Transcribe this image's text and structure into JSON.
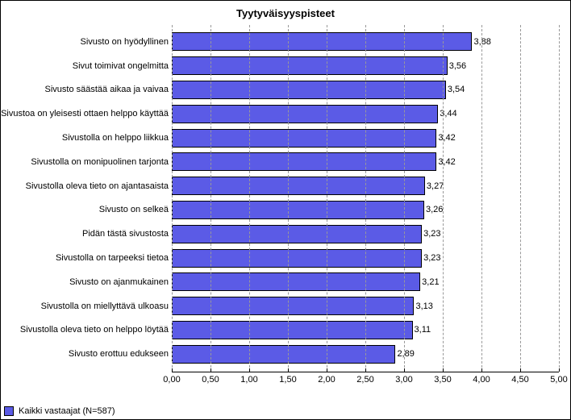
{
  "chart": {
    "type": "bar-horizontal",
    "title": "Tyytyväisyyspisteet",
    "title_fontsize": 13,
    "label_fontsize": 11,
    "background_color": "#ffffff",
    "border_color": "#000000",
    "grid_color": "#999999",
    "bar_color": "#5b5be6",
    "bar_border_color": "#000000",
    "xlim": [
      0.0,
      5.0
    ],
    "xtick_step": 0.5,
    "xticks": [
      "0,00",
      "0,50",
      "1,00",
      "1,50",
      "2,00",
      "2,50",
      "3,00",
      "3,50",
      "4,00",
      "4,50",
      "5,00"
    ],
    "bars": [
      {
        "label": "Sivusto on hyödyllinen",
        "value": 3.88,
        "value_text": "3,88"
      },
      {
        "label": "Sivut toimivat ongelmitta",
        "value": 3.56,
        "value_text": "3,56"
      },
      {
        "label": "Sivusto säästää aikaa ja vaivaa",
        "value": 3.54,
        "value_text": "3,54"
      },
      {
        "label": "Sivustoa on yleisesti ottaen helppo käyttää",
        "value": 3.44,
        "value_text": "3,44"
      },
      {
        "label": "Sivustolla on helppo liikkua",
        "value": 3.42,
        "value_text": "3,42"
      },
      {
        "label": "Sivustolla on monipuolinen tarjonta",
        "value": 3.42,
        "value_text": "3,42"
      },
      {
        "label": "Sivustolla oleva tieto on ajantasaista",
        "value": 3.27,
        "value_text": "3,27"
      },
      {
        "label": "Sivusto on selkeä",
        "value": 3.26,
        "value_text": "3,26"
      },
      {
        "label": "Pidän tästä sivustosta",
        "value": 3.23,
        "value_text": "3,23"
      },
      {
        "label": "Sivustolla on tarpeeksi tietoa",
        "value": 3.23,
        "value_text": "3,23"
      },
      {
        "label": "Sivusto on ajanmukainen",
        "value": 3.21,
        "value_text": "3,21"
      },
      {
        "label": "Sivustolla on miellyttävä ulkoasu",
        "value": 3.13,
        "value_text": "3,13"
      },
      {
        "label": "Sivustolla oleva tieto on helppo löytää",
        "value": 3.11,
        "value_text": "3,11"
      },
      {
        "label": "Sivusto erottuu edukseen",
        "value": 2.89,
        "value_text": "2,89"
      }
    ],
    "legend": {
      "swatch_color": "#5b5be6",
      "label": "Kaikki vastaajat (N=587)"
    }
  }
}
